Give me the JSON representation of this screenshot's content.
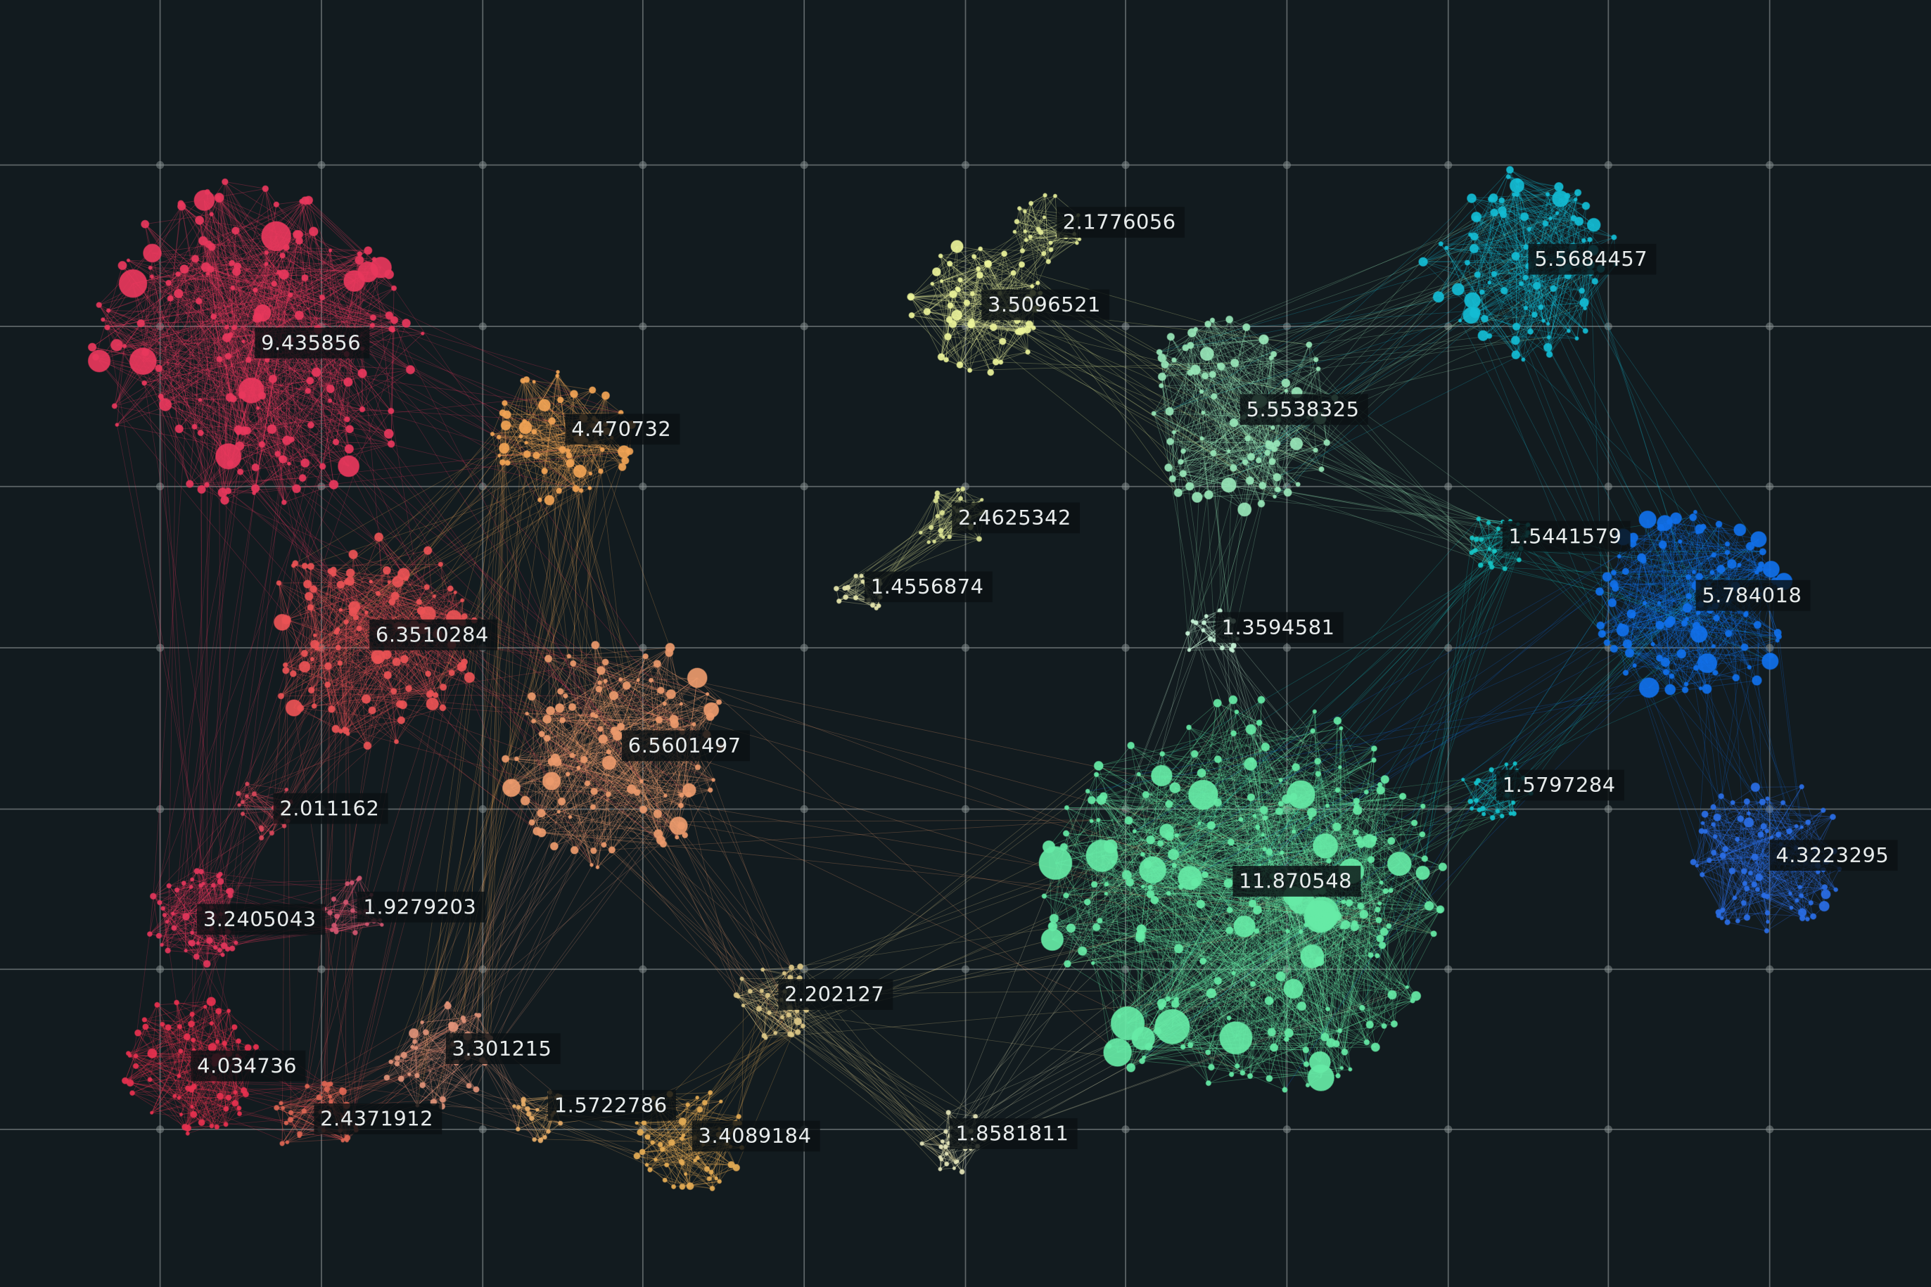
{
  "background": "#121b1f",
  "clusters": [
    {
      "label": "9.435856",
      "color": "#e8375c"
    },
    {
      "label": "4.470732",
      "color": "#f2a455"
    },
    {
      "label": "6.3510284",
      "color": "#ea5255"
    },
    {
      "label": "6.5601497",
      "color": "#eb9a6c"
    },
    {
      "label": "2.011162",
      "color": "#d8475a"
    },
    {
      "label": "3.2405043",
      "color": "#e3365b"
    },
    {
      "label": "1.9279203",
      "color": "#d15670"
    },
    {
      "label": "4.034736",
      "color": "#e8314f"
    },
    {
      "label": "2.4371912",
      "color": "#dc6553"
    },
    {
      "label": "3.301215",
      "color": "#df9278"
    },
    {
      "label": "1.5722786",
      "color": "#e7ad68"
    },
    {
      "label": "3.4089184",
      "color": "#e5ac55"
    },
    {
      "label": "2.202127",
      "color": "#dcc888"
    },
    {
      "label": "2.1776056",
      "color": "#e4ec98"
    },
    {
      "label": "3.5096521",
      "color": "#ecf39a"
    },
    {
      "label": "2.4625342",
      "color": "#dde495"
    },
    {
      "label": "1.4556874",
      "color": "#e6e6ac"
    },
    {
      "label": "5.5538325",
      "color": "#98e6b8"
    },
    {
      "label": "5.5684457",
      "color": "#14bcd4"
    },
    {
      "label": "1.5441579",
      "color": "#16c4c4"
    },
    {
      "label": "5.784018",
      "color": "#1070ea"
    },
    {
      "label": "1.3594581",
      "color": "#c8f4d8"
    },
    {
      "label": "11.870548",
      "color": "#66eaa6"
    },
    {
      "label": "1.5797284",
      "color": "#14c2cc"
    },
    {
      "label": "4.3223295",
      "color": "#2a6ee6"
    },
    {
      "label": "1.8581811",
      "color": "#e4e4b8"
    }
  ]
}
